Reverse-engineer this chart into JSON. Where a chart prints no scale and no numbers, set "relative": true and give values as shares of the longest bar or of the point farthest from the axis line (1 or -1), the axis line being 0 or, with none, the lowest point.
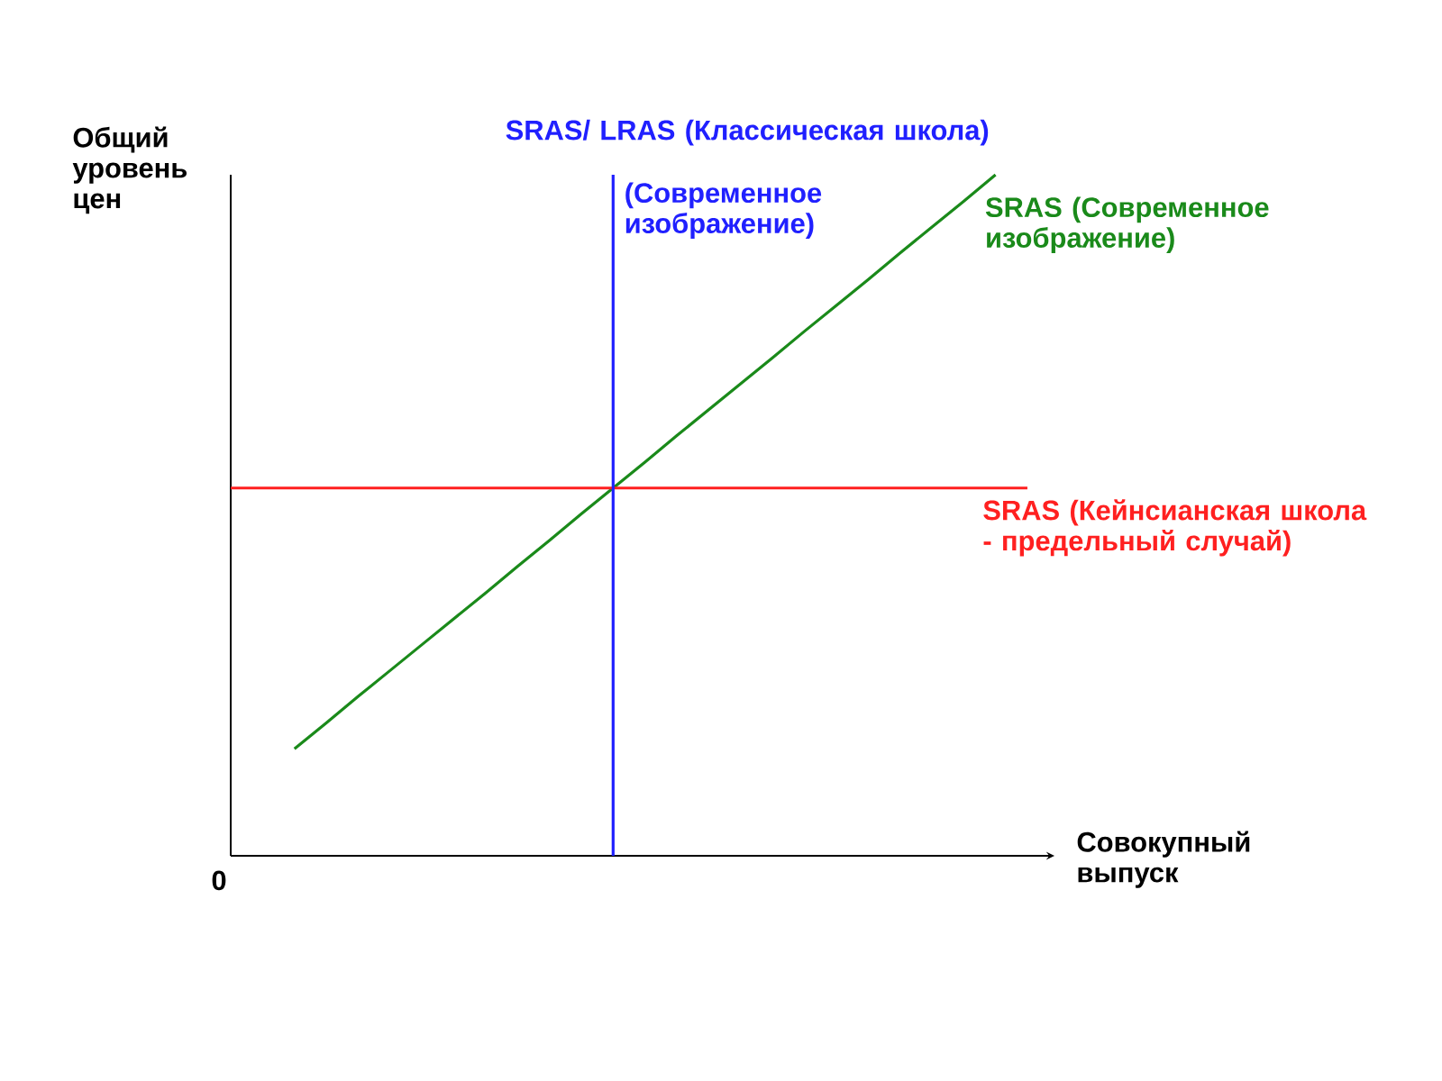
{
  "chart_data": {
    "type": "line",
    "relative": true,
    "xlabel": "Совокупный выпуск",
    "ylabel": "Общий уровень цен",
    "annotations": [
      "0",
      "SRAS/ LRAS (Классическая школа)",
      "(Современное изображение)"
    ],
    "categories": [
      null,
      null,
      null,
      null,
      null,
      null,
      null,
      null,
      null,
      null,
      null,
      null,
      null,
      null,
      null,
      null,
      null,
      null,
      null,
      null,
      null,
      null,
      null,
      null,
      null,
      null
    ],
    "series": [
      {
        "name": "SRAS (Современное изображение)",
        "color": "#1a8a1a",
        "values": [
          null,
          null,
          0.157,
          0.195,
          0.234,
          0.272,
          0.31,
          0.348,
          0.386,
          0.425,
          0.463,
          0.502,
          0.54,
          0.578,
          0.617,
          0.655,
          0.693,
          0.731,
          0.77,
          0.808,
          0.846,
          0.885,
          0.923,
          0.961,
          1.0,
          null
        ]
      },
      {
        "name": "SRAS (Кейнсианская школа - предельный случай)",
        "color": "#ff2020",
        "values": [
          0.54,
          0.54,
          0.54,
          0.54,
          0.54,
          0.54,
          0.54,
          0.54,
          0.54,
          0.54,
          0.54,
          0.54,
          0.54,
          0.54,
          0.54,
          0.54,
          0.54,
          0.54,
          0.54,
          0.54,
          0.54,
          0.54,
          0.54,
          0.54,
          0.54,
          0.54
        ]
      }
    ]
  }
}
